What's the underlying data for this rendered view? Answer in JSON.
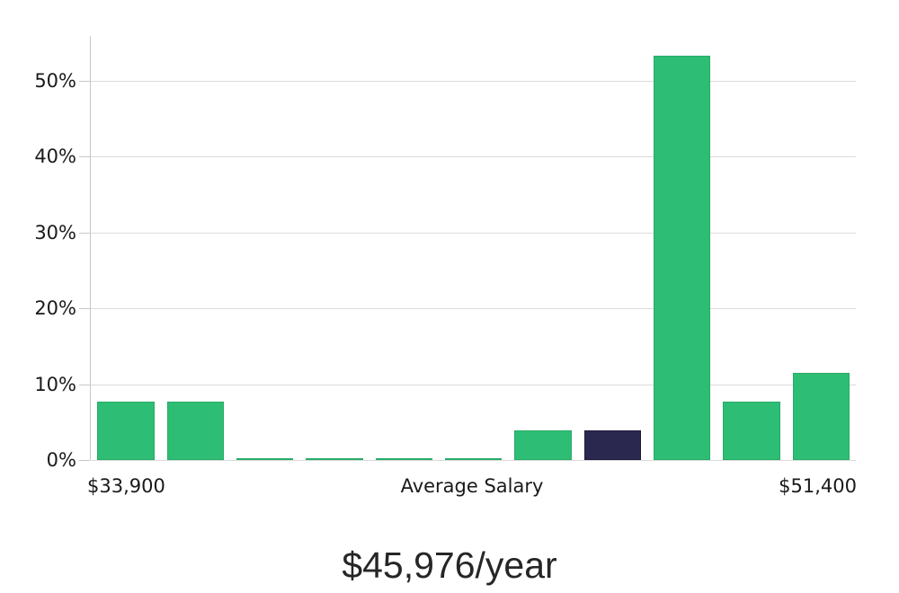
{
  "chart_data": {
    "type": "bar",
    "title": "$45,976/year",
    "values": [
      7.7,
      7.7,
      0.2,
      0.2,
      0.2,
      0.2,
      3.9,
      3.9,
      53.3,
      7.7,
      11.5
    ],
    "highlight_index": 7,
    "y_tick_values": [
      0,
      10,
      20,
      30,
      40,
      50
    ],
    "y_tick_labels": [
      "0%",
      "10%",
      "20%",
      "30%",
      "40%",
      "50%"
    ],
    "x_axis_labels": {
      "left": "$33,900",
      "center": "Average Salary",
      "right": "$51,400"
    },
    "ylim": [
      0,
      55.9
    ],
    "grid": "horizontal",
    "legend": "none",
    "colors": {
      "bar": "#2ebd74",
      "bar_border": "#27ab67",
      "highlight": "#2b2850",
      "highlight_border": "#1f1c3c",
      "grid": "#dcdcdc",
      "axis": "#c7c7c7",
      "label": "#1a1a1a",
      "title": "#262626",
      "background": "#ffffff"
    }
  }
}
